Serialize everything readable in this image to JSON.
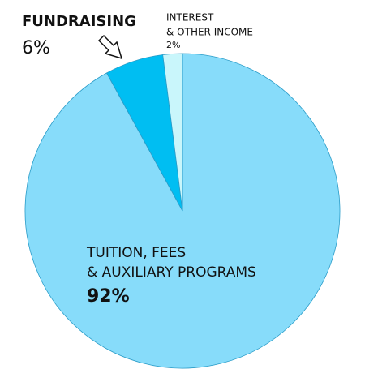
{
  "chart_data": {
    "type": "pie",
    "categories": [
      [
        "TUITION, FEES",
        "& AUXILIARY PROGRAMS"
      ],
      [
        "FUNDRAISING"
      ],
      [
        "INTEREST",
        "& OTHER INCOME"
      ]
    ],
    "values": [
      92,
      6,
      2
    ],
    "value_labels": [
      "92%",
      "6%",
      "2%"
    ],
    "colors": [
      "#87dcfa",
      "#00bef2",
      "#c9f6fb"
    ]
  }
}
